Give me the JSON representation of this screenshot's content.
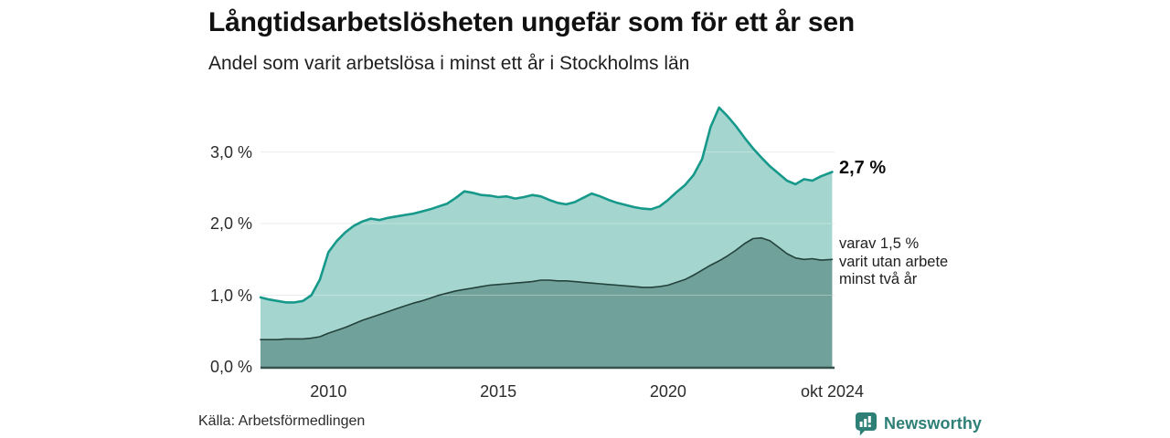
{
  "header": {
    "title": "Långtidsarbetslösheten ungefär som för ett år sen",
    "subtitle": "Andel som varit arbetslösa i minst ett år i Stockholms län"
  },
  "chart_data": {
    "type": "area",
    "title": "Långtidsarbetslösheten ungefär som för ett år sen",
    "subtitle": "Andel som varit arbetslösa i minst ett år i Stockholms län",
    "xlabel": "",
    "ylabel": "",
    "xlim": [
      2008,
      2024.9
    ],
    "ylim": [
      0,
      3.81
    ],
    "grid": "horizontal",
    "legend_position": "right-annotations",
    "y_ticks": [
      {
        "value": 0,
        "label": "0,0 %"
      },
      {
        "value": 1,
        "label": "1,0 %"
      },
      {
        "value": 2,
        "label": "2,0 %"
      },
      {
        "value": 3,
        "label": "3,0 %"
      }
    ],
    "x_ticks": [
      {
        "value": 2010,
        "label": "2010"
      },
      {
        "value": 2015,
        "label": "2015"
      },
      {
        "value": 2020,
        "label": "2020"
      },
      {
        "value": 2024.833,
        "label": "okt 2024"
      }
    ],
    "x": [
      2008,
      2008.25,
      2008.5,
      2008.75,
      2009,
      2009.25,
      2009.5,
      2009.75,
      2010,
      2010.25,
      2010.5,
      2010.75,
      2011,
      2011.25,
      2011.5,
      2011.75,
      2012,
      2012.25,
      2012.5,
      2012.75,
      2013,
      2013.25,
      2013.5,
      2013.75,
      2014,
      2014.25,
      2014.5,
      2014.75,
      2015,
      2015.25,
      2015.5,
      2015.75,
      2016,
      2016.25,
      2016.5,
      2016.75,
      2017,
      2017.25,
      2017.5,
      2017.75,
      2018,
      2018.25,
      2018.5,
      2018.75,
      2019,
      2019.25,
      2019.5,
      2019.75,
      2020,
      2020.25,
      2020.5,
      2020.75,
      2021,
      2021.25,
      2021.5,
      2021.75,
      2022,
      2022.25,
      2022.5,
      2022.75,
      2023,
      2023.25,
      2023.5,
      2023.75,
      2024,
      2024.25,
      2024.5,
      2024.83
    ],
    "series": [
      {
        "name": "Andel arbetslösa minst ett år",
        "end_label": "2,7 %",
        "end_value": 2.7,
        "stroke": "#16998a",
        "fill": "#a4d5ce",
        "values": [
          0.97,
          0.94,
          0.92,
          0.9,
          0.9,
          0.92,
          1.0,
          1.22,
          1.6,
          1.76,
          1.88,
          1.97,
          2.03,
          2.07,
          2.05,
          2.08,
          2.1,
          2.12,
          2.14,
          2.17,
          2.2,
          2.24,
          2.28,
          2.36,
          2.45,
          2.43,
          2.4,
          2.39,
          2.37,
          2.38,
          2.35,
          2.37,
          2.4,
          2.38,
          2.33,
          2.29,
          2.27,
          2.3,
          2.36,
          2.42,
          2.38,
          2.33,
          2.29,
          2.26,
          2.23,
          2.21,
          2.2,
          2.24,
          2.33,
          2.44,
          2.54,
          2.68,
          2.9,
          3.35,
          3.62,
          3.5,
          3.36,
          3.2,
          3.05,
          2.92,
          2.8,
          2.7,
          2.6,
          2.55,
          2.62,
          2.6,
          2.66,
          2.72
        ]
      },
      {
        "name": "Andel arbetslösa minst två år",
        "end_label": "varav 1,5 % varit utan arbete minst två år",
        "end_value": 1.5,
        "stroke": "#24423c",
        "fill": "#70a19a",
        "values": [
          0.38,
          0.38,
          0.38,
          0.39,
          0.39,
          0.39,
          0.4,
          0.42,
          0.47,
          0.51,
          0.55,
          0.6,
          0.65,
          0.69,
          0.73,
          0.77,
          0.81,
          0.85,
          0.89,
          0.92,
          0.96,
          1.0,
          1.03,
          1.06,
          1.08,
          1.1,
          1.12,
          1.14,
          1.15,
          1.16,
          1.17,
          1.18,
          1.19,
          1.21,
          1.21,
          1.2,
          1.2,
          1.19,
          1.18,
          1.17,
          1.16,
          1.15,
          1.14,
          1.13,
          1.12,
          1.11,
          1.11,
          1.12,
          1.14,
          1.18,
          1.22,
          1.28,
          1.35,
          1.42,
          1.48,
          1.55,
          1.63,
          1.72,
          1.79,
          1.8,
          1.76,
          1.67,
          1.58,
          1.52,
          1.5,
          1.51,
          1.49,
          1.5
        ]
      }
    ]
  },
  "annotations": {
    "end_value": "2,7 %",
    "subseries_lines": [
      "varav 1,5 %",
      "varit utan arbete",
      "minst två år"
    ]
  },
  "footer": {
    "source": "Källa: Arbetsförmedlingen",
    "brand": "Newsworthy"
  },
  "colors": {
    "accent_teal": "#16998a",
    "light_fill": "#a4d5ce",
    "dark_fill": "#70a19a",
    "dark_stroke": "#24423c",
    "gridline": "#e2e2e6",
    "gridline_overlay": "rgba(255,255,255,0.32)",
    "baseline": "#35524c",
    "brand_teal": "#2e8077"
  }
}
